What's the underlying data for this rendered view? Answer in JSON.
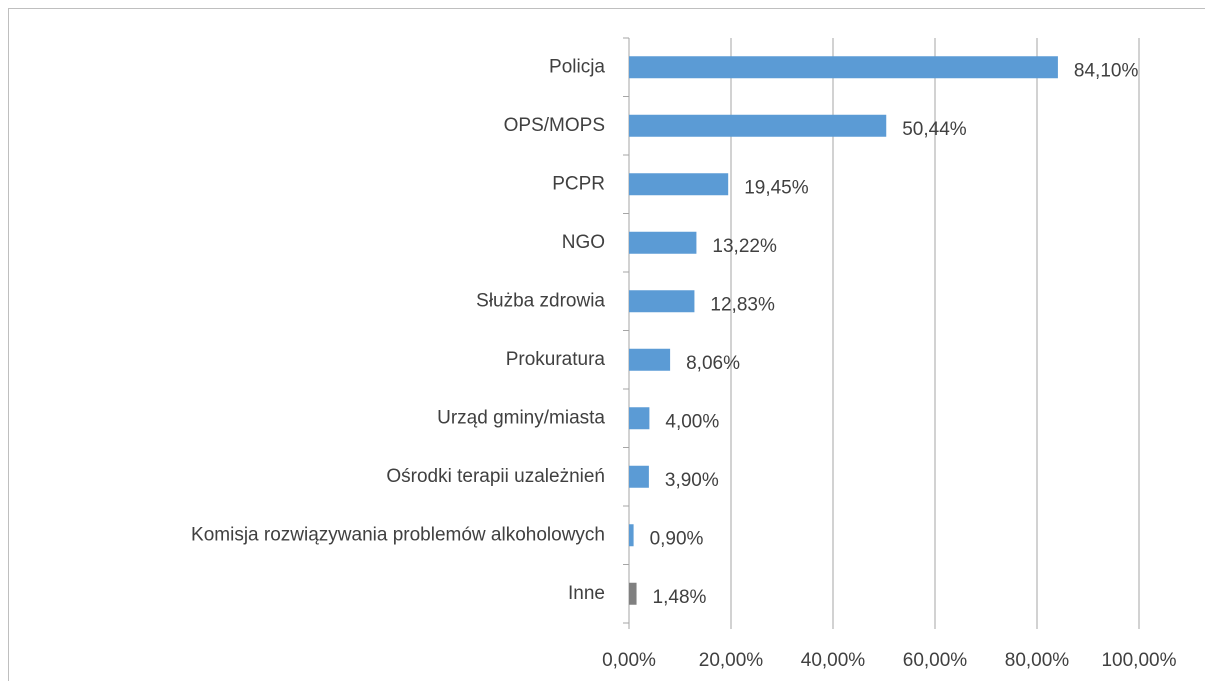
{
  "chart_data": {
    "type": "barh",
    "categories": [
      "Policja",
      "OPS/MOPS",
      "PCPR",
      "NGO",
      "Służba zdrowia",
      "Prokuratura",
      "Urząd gminy/miasta",
      "Ośrodki terapii uzależnień",
      "Komisja rozwiązywania problemów alkoholowych",
      "Inne"
    ],
    "values": [
      84.1,
      50.44,
      19.45,
      13.22,
      12.83,
      8.06,
      4.0,
      3.9,
      0.9,
      1.48
    ],
    "value_labels": [
      "84,10%",
      "50,44%",
      "19,45%",
      "13,22%",
      "12,83%",
      "8,06%",
      "4,00%",
      "3,90%",
      "0,90%",
      "1,48%"
    ],
    "colors": [
      "#5b9bd5",
      "#5b9bd5",
      "#5b9bd5",
      "#5b9bd5",
      "#5b9bd5",
      "#5b9bd5",
      "#5b9bd5",
      "#5b9bd5",
      "#5b9bd5",
      "#808080"
    ],
    "xlim": [
      0,
      100
    ],
    "xticks": [
      {
        "value": 0,
        "label": "0,00%"
      },
      {
        "value": 20,
        "label": "20,00%"
      },
      {
        "value": 40,
        "label": "40,00%"
      },
      {
        "value": 60,
        "label": "60,00%"
      },
      {
        "value": 80,
        "label": "80,00%"
      },
      {
        "value": 100,
        "label": "100,00%"
      }
    ],
    "grid": true
  }
}
